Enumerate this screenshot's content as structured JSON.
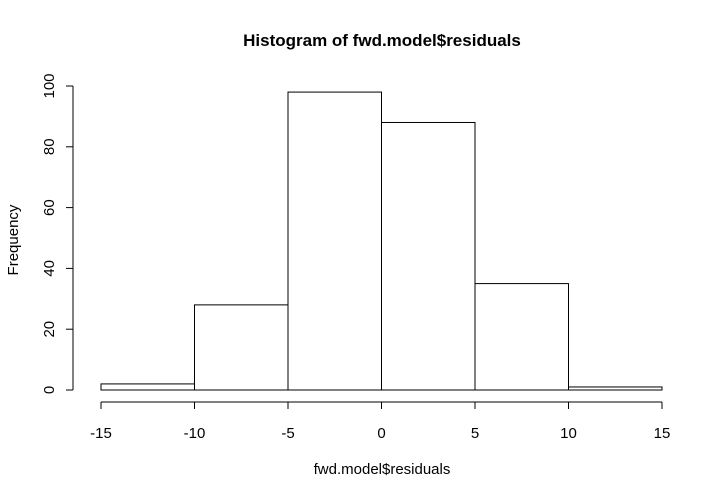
{
  "chart_data": {
    "type": "bar",
    "subtype": "histogram",
    "title": "Histogram of fwd.model$residuals",
    "xlabel": "fwd.model$residuals",
    "ylabel": "Frequency",
    "bins": [
      {
        "start": -15,
        "end": -10,
        "count": 2
      },
      {
        "start": -10,
        "end": -5,
        "count": 28
      },
      {
        "start": -5,
        "end": 0,
        "count": 98
      },
      {
        "start": 0,
        "end": 5,
        "count": 88
      },
      {
        "start": 5,
        "end": 10,
        "count": 35
      },
      {
        "start": 10,
        "end": 15,
        "count": 1
      }
    ],
    "xlim": [
      -15,
      15
    ],
    "ylim": [
      0,
      100
    ],
    "x_ticks": [
      -15,
      -10,
      -5,
      0,
      5,
      10,
      15
    ],
    "y_ticks": [
      0,
      20,
      40,
      60,
      80,
      100
    ],
    "grid": false,
    "bar_fill": "#ffffff",
    "bar_stroke": "#000000"
  }
}
